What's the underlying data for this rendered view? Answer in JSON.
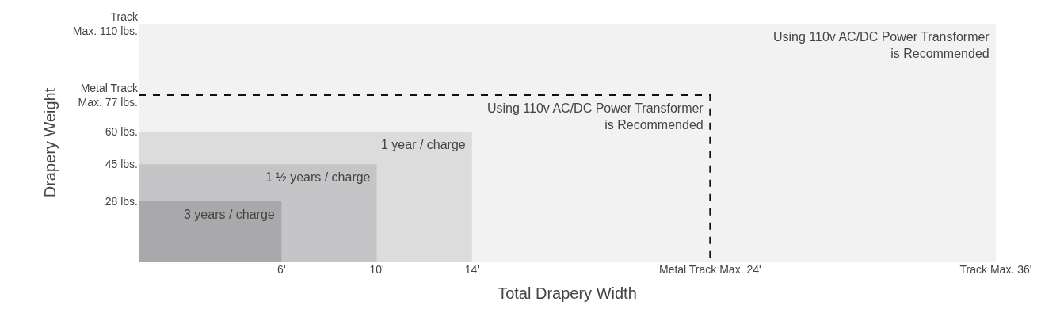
{
  "chart_data": {
    "type": "area",
    "xlabel": "Total Drapery Width",
    "ylabel": "Drapery Weight",
    "xlim": [
      0,
      36
    ],
    "ylim": [
      0,
      110
    ],
    "xticks": [
      {
        "value": 6,
        "label": "6'"
      },
      {
        "value": 10,
        "label": "10'"
      },
      {
        "value": 14,
        "label": "14'"
      },
      {
        "value": 24,
        "label": "Metal Track Max. 24'"
      },
      {
        "value": 36,
        "label": "Track Max. 36'"
      }
    ],
    "yticks": [
      {
        "value": 28,
        "label": "28 lbs."
      },
      {
        "value": 45,
        "label": "45 lbs."
      },
      {
        "value": 60,
        "label": "60 lbs."
      },
      {
        "value": 77,
        "label": "Metal Track\nMax. 77 lbs."
      },
      {
        "value": 110,
        "label": "Track\nMax. 110 lbs."
      }
    ],
    "series": [
      {
        "color": "#f2f2f2",
        "x": [
          0,
          36
        ],
        "values": [
          110,
          110
        ]
      },
      {
        "color": "#dcdcdd",
        "x": [
          0,
          14
        ],
        "values": [
          60,
          60
        ]
      },
      {
        "color": "#c5c5c7",
        "x": [
          0,
          10
        ],
        "values": [
          45,
          45
        ]
      },
      {
        "color": "#a9a9ab",
        "x": [
          0,
          6
        ],
        "values": [
          28,
          28
        ]
      },
      {
        "type": "line",
        "color": "#111111",
        "line_style": "dashed",
        "x": [
          0,
          24,
          24
        ],
        "values": [
          77,
          77,
          0
        ]
      }
    ],
    "annotations": [
      {
        "text": "Using 110v AC/DC Power Transformer\nis Recommended",
        "x": 36,
        "y": 110
      },
      {
        "text": "Using 110v AC/DC Power Transformer\nis Recommended",
        "x": 24,
        "y": 77
      },
      {
        "text": "1 year / charge",
        "x": 14,
        "y": 60
      },
      {
        "text": "1 ½ years / charge",
        "x": 10,
        "y": 45
      },
      {
        "text": "3 years / charge",
        "x": 6,
        "y": 28
      }
    ]
  }
}
